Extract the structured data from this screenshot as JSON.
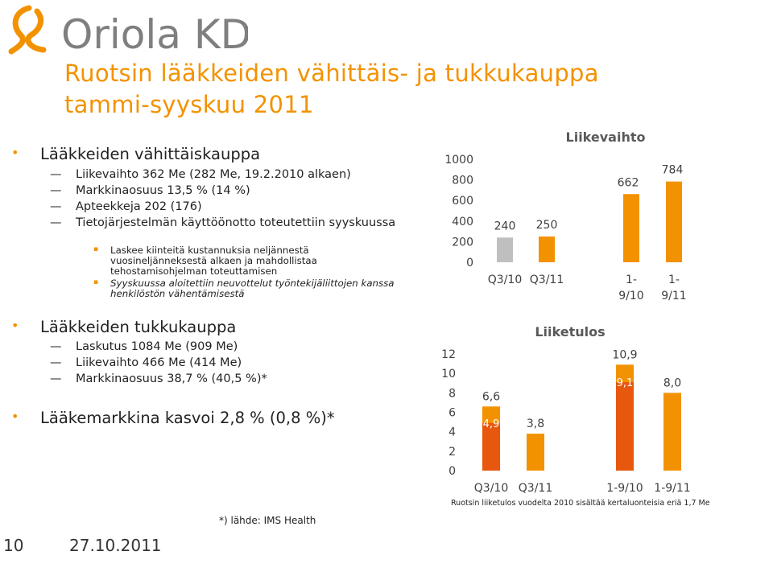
{
  "header": {
    "logo_text": "Oriola KD",
    "title_line1": "Ruotsin lääkkeiden vähittäis- ja tukkukauppa",
    "title_line2": "tammi-syyskuu 2011"
  },
  "sections": {
    "retail": {
      "heading": "Lääkkeiden vähittäiskauppa",
      "items": [
        "Liikevaihto 362 Me (282 Me, 19.2.2010 alkaen)",
        "Markkinaosuus 13,5 % (14 %)",
        "Apteekkeja 202 (176)",
        "Tietojärjestelmän käyttöönotto toteutettiin syyskuussa"
      ],
      "subitems": [
        "Laskee kiinteitä kustannuksia neljännestä vuosineljänneksestä alkaen ja mahdollistaa tehostamisohjelman toteuttamisen",
        "Syyskuussa aloitettiin neuvottelut työntekijäliittojen kanssa henkilöstön vähentämisestä"
      ]
    },
    "wholesale": {
      "heading": "Lääkkeiden tukkukauppa",
      "items": [
        "Laskutus 1084 Me (909 Me)",
        "Liikevaihto 466 Me (414 Me)",
        "Markkinaosuus 38,7 % (40,5 %)*"
      ]
    },
    "market": {
      "heading": "Lääkemarkkina kasvoi 2,8 % (0,8 %)*"
    }
  },
  "footer": {
    "page_number": "10",
    "date": "27.10.2011",
    "source_note": "*) lähde: IMS Health",
    "chart_note": "Ruotsin liiketulos vuodelta 2010 sisältää kertaluonteisia eriä 1,7 Me"
  },
  "colors": {
    "orange": "#f39200",
    "dark_orange": "#e8570e",
    "gray": "#bfbfbf"
  },
  "chart_data": [
    {
      "type": "bar",
      "title": "Liikevaihto",
      "categories": [
        "Q3/10",
        "Q3/11",
        "1-9/10",
        "1-9/11"
      ],
      "category_lines": [
        [
          "Q3/10"
        ],
        [
          "Q3/11"
        ],
        [
          "1-",
          "9/10"
        ],
        [
          "1-",
          "9/11"
        ]
      ],
      "values": [
        240,
        250,
        662,
        784
      ],
      "value_labels": [
        "240",
        "250",
        "662",
        "784"
      ],
      "bar_colors": [
        "#bfbfbf",
        "#f39200",
        "#f39200",
        "#f39200"
      ],
      "ylim": [
        0,
        1000
      ],
      "yticks": [
        "0",
        "200",
        "400",
        "600",
        "800",
        "1000"
      ],
      "grid": false
    },
    {
      "type": "bar",
      "title": "Liiketulos",
      "categories": [
        "Q3/10",
        "Q3/11",
        "1-9/10",
        "1-9/11"
      ],
      "series": [
        {
          "values": [
            4.9,
            0,
            9.1,
            0
          ],
          "color": "#e8570e",
          "labels": [
            "4,9",
            "",
            "9,1",
            ""
          ]
        },
        {
          "values": [
            6.6,
            3.8,
            10.9,
            8.0
          ],
          "color": "#f39200",
          "labels": [
            "6,6",
            "3,8",
            "10,9",
            "8,0"
          ]
        }
      ],
      "ylim": [
        0,
        12
      ],
      "yticks": [
        "0",
        "2",
        "4",
        "6",
        "8",
        "10",
        "12"
      ],
      "grid": false
    }
  ]
}
